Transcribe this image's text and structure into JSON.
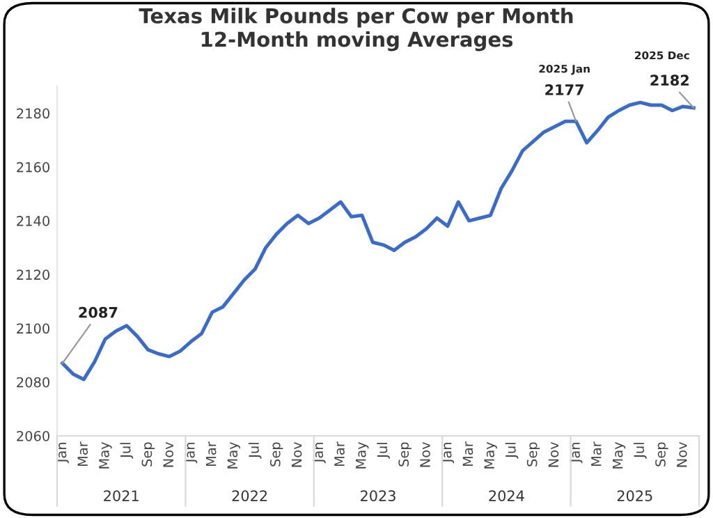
{
  "chart_data": {
    "type": "line",
    "title": "Texas Milk Pounds per Cow per Month\n12-Month moving Averages",
    "categories": [
      "Jan",
      null,
      "Mar",
      null,
      "May",
      null,
      "Jul",
      null,
      "Sep",
      null,
      "Nov",
      null,
      "Jan",
      null,
      "Mar",
      null,
      "May",
      null,
      "Jul",
      null,
      "Sep",
      null,
      "Nov",
      null,
      "Jan",
      null,
      "Mar",
      null,
      "May",
      null,
      "Jul",
      null,
      "Sep",
      null,
      "Nov",
      null,
      "Jan",
      null,
      "Mar",
      null,
      "May",
      null,
      "Jul",
      null,
      "Sep",
      null,
      "Nov",
      null,
      "Jan",
      null,
      "Mar",
      null,
      "May",
      null,
      "Jul",
      null,
      "Sep",
      null,
      "Nov",
      null
    ],
    "series": [
      {
        "color": "#3a6bc8",
        "values": [
          2087,
          2083,
          2081,
          2087.5,
          2096,
          2099,
          2101,
          2097,
          2092,
          2090.5,
          2089.5,
          2091.5,
          2095,
          2098,
          2106,
          2108,
          2113,
          2118,
          2122,
          2130,
          2135,
          2139,
          2142,
          2139,
          2141,
          2144,
          2147,
          2141.5,
          2142,
          2132,
          2131,
          2129,
          2132,
          2134,
          2137,
          2141,
          2138,
          2147,
          2140,
          2141,
          2142,
          2152,
          2158.5,
          2166,
          2169.5,
          2173,
          2175,
          2177,
          2177,
          2169,
          2173.5,
          2178.5,
          2181,
          2183,
          2184,
          2183,
          2183,
          2181,
          2182.5,
          2182
        ],
        "value_labels": [
          "2087",
          null,
          null,
          null,
          null,
          null,
          null,
          null,
          null,
          null,
          null,
          null,
          null,
          null,
          null,
          null,
          null,
          null,
          null,
          null,
          null,
          null,
          null,
          null,
          null,
          null,
          null,
          null,
          null,
          null,
          null,
          null,
          null,
          null,
          null,
          null,
          null,
          null,
          null,
          null,
          null,
          null,
          null,
          null,
          null,
          null,
          null,
          null,
          "2177",
          null,
          null,
          null,
          null,
          null,
          null,
          null,
          null,
          null,
          null,
          "2182"
        ]
      }
    ],
    "annotations": [
      "2021",
      "2022",
      "2023",
      "2024",
      "2025",
      "2025 Jan",
      "2025 Dec"
    ],
    "ylim": [
      2060,
      2190
    ],
    "yticks": [
      2060,
      2080,
      2100,
      2120,
      2140,
      2160,
      2180
    ],
    "grid": false,
    "legend": false,
    "marker": "none",
    "line_style": "solid"
  }
}
